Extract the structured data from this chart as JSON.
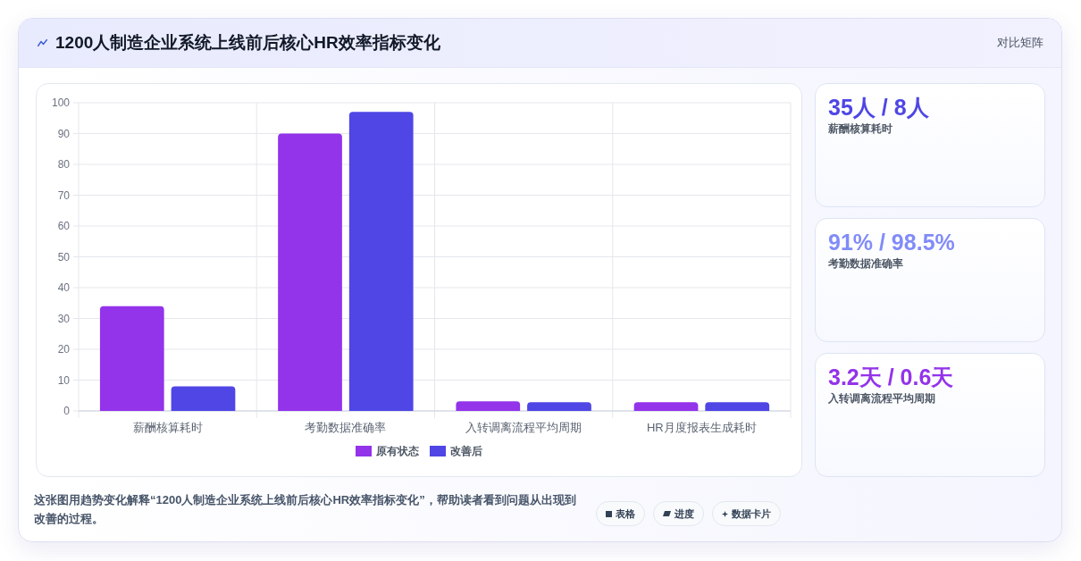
{
  "chart_data": [
    {
      "type": "other",
      "title": "1200人制造企业系统上线前后核心HR效率指标变化",
      "subtitle": "对比矩阵"
    },
    {
      "type": "bar",
      "categories": [
        "薪酬核算耗时",
        "考勤数据准确率",
        "入转调离流程平均周期",
        "HR月度报表生成耗时"
      ],
      "series": [
        {
          "name": "原有状态",
          "color": "#9333ea",
          "values": [
            34,
            90,
            3.1,
            2.8
          ]
        },
        {
          "name": "改善后",
          "color": "#4f46e5",
          "values": [
            8,
            97,
            2.8,
            2.8
          ]
        }
      ],
      "ylim": [
        0,
        100
      ],
      "yticks": [
        0,
        10,
        20,
        30,
        40,
        50,
        60,
        70,
        80,
        90,
        100
      ],
      "grid": true,
      "legend": "bottom",
      "annotations": [
        "这张图用趋势变化解释“1200人制造企业系统上线前后核心HR效率指标变化”，帮助读者看到问题从出现到改善的过程。",
        "表格",
        "进度",
        "数据卡片"
      ]
    },
    {
      "type": "other",
      "title": "35人 / 8人",
      "subtitle": "薪酬核算耗时",
      "color": "#4f46e5"
    },
    {
      "type": "other",
      "title": "91% / 98.5%",
      "subtitle": "考勤数据准确率",
      "color": "#818cf8"
    },
    {
      "type": "other",
      "title": "3.2天 / 0.6天",
      "subtitle": "入转调离流程平均周期",
      "color": "#9333ea"
    }
  ]
}
